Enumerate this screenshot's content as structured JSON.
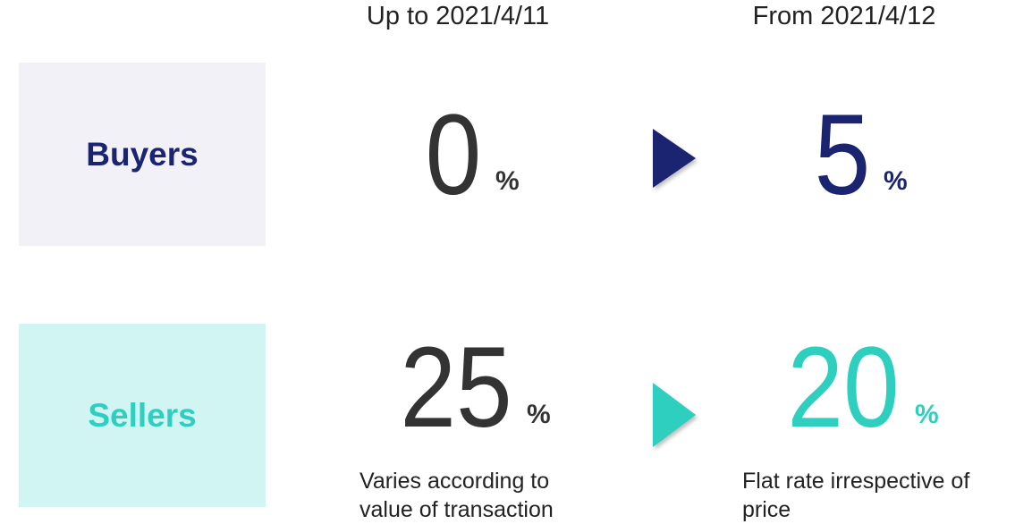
{
  "headers": [
    "Up to 2021/4/11",
    "From 2021/4/12"
  ],
  "rows": [
    {
      "label": "Buyers",
      "before": {
        "value": "0",
        "unit": "%"
      },
      "after": {
        "value": "5",
        "unit": "%"
      }
    },
    {
      "label": "Sellers",
      "before": {
        "value": "25",
        "unit": "%"
      },
      "after": {
        "value": "20",
        "unit": "%"
      },
      "before_note": [
        "Varies according to",
        "value of transaction"
      ],
      "after_note": [
        "Flat rate irrespective of",
        "price"
      ]
    }
  ]
}
